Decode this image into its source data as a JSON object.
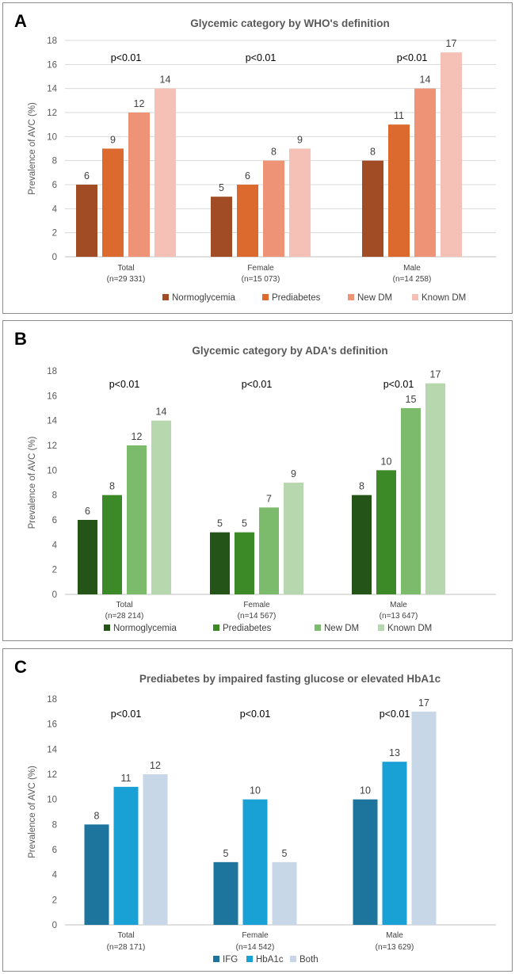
{
  "chart_data": [
    {
      "panel": "A",
      "type": "bar",
      "title": "Glycemic category by WHO's definition",
      "ylabel": "Prevalence of AVC (%)",
      "xlabel": "",
      "ylim": [
        0,
        18
      ],
      "yticks": [
        0,
        2,
        4,
        6,
        8,
        10,
        12,
        14,
        16,
        18
      ],
      "grid": true,
      "legend_position": "bottom",
      "categories": [
        {
          "name": "Total",
          "n": "(n=29 331)",
          "pvalue": "p<0.01"
        },
        {
          "name": "Female",
          "n": "(n=15 073)",
          "pvalue": "p<0.01"
        },
        {
          "name": "Male",
          "n": "(n=14 258)",
          "pvalue": "p<0.01"
        }
      ],
      "series": [
        {
          "name": "Normoglycemia",
          "color": "#a14c25",
          "values": [
            6,
            5,
            8
          ]
        },
        {
          "name": "Prediabetes",
          "color": "#dc6a2e",
          "values": [
            9,
            6,
            11
          ]
        },
        {
          "name": "New DM",
          "color": "#ee9375",
          "values": [
            12,
            8,
            14
          ]
        },
        {
          "name": "Known DM",
          "color": "#f5c0b5",
          "values": [
            14,
            9,
            17
          ]
        }
      ]
    },
    {
      "panel": "B",
      "type": "bar",
      "title": "Glycemic category by ADA's definition",
      "ylabel": "Prevalence of AVC (%)",
      "xlabel": "",
      "ylim": [
        0,
        18
      ],
      "yticks": [
        0,
        2,
        4,
        6,
        8,
        10,
        12,
        14,
        16,
        18
      ],
      "grid": false,
      "legend_position": "bottom",
      "categories": [
        {
          "name": "Total",
          "n": "(n=28 214)",
          "pvalue": "p<0.01"
        },
        {
          "name": "Female",
          "n": "(n=14 567)",
          "pvalue": "p<0.01"
        },
        {
          "name": "Male",
          "n": "(n=13 647)",
          "pvalue": "p<0.01"
        }
      ],
      "series": [
        {
          "name": "Normoglycemia",
          "color": "#255419",
          "values": [
            6,
            5,
            8
          ]
        },
        {
          "name": "Prediabetes",
          "color": "#3b8a27",
          "values": [
            8,
            5,
            10
          ]
        },
        {
          "name": "New DM",
          "color": "#7dbb6c",
          "values": [
            12,
            7,
            15
          ]
        },
        {
          "name": "Known DM",
          "color": "#b7d7ae",
          "values": [
            14,
            9,
            17
          ]
        }
      ]
    },
    {
      "panel": "C",
      "type": "bar",
      "title": "Prediabetes by impaired fasting glucose or elevated HbA1c",
      "ylabel": "Prevalence of AVC (%)",
      "xlabel": "",
      "ylim": [
        0,
        18
      ],
      "yticks": [
        0,
        2,
        4,
        6,
        8,
        10,
        12,
        14,
        16,
        18
      ],
      "grid": false,
      "legend_position": "bottom",
      "categories": [
        {
          "name": "Total",
          "n": "(n=28 171)",
          "pvalue": "p<0.01"
        },
        {
          "name": "Female",
          "n": "(n=14 542)",
          "pvalue": "p<0.01"
        },
        {
          "name": "Male",
          "n": "(n=13 629)",
          "pvalue": "p<0.01"
        }
      ],
      "series": [
        {
          "name": "IFG",
          "color": "#1d759e",
          "values": [
            8,
            5,
            10
          ]
        },
        {
          "name": "HbA1c",
          "color": "#19a1d6",
          "values": [
            11,
            10,
            13
          ]
        },
        {
          "name": "Both",
          "color": "#c7d7e8",
          "values": [
            12,
            5,
            17
          ]
        }
      ]
    }
  ]
}
